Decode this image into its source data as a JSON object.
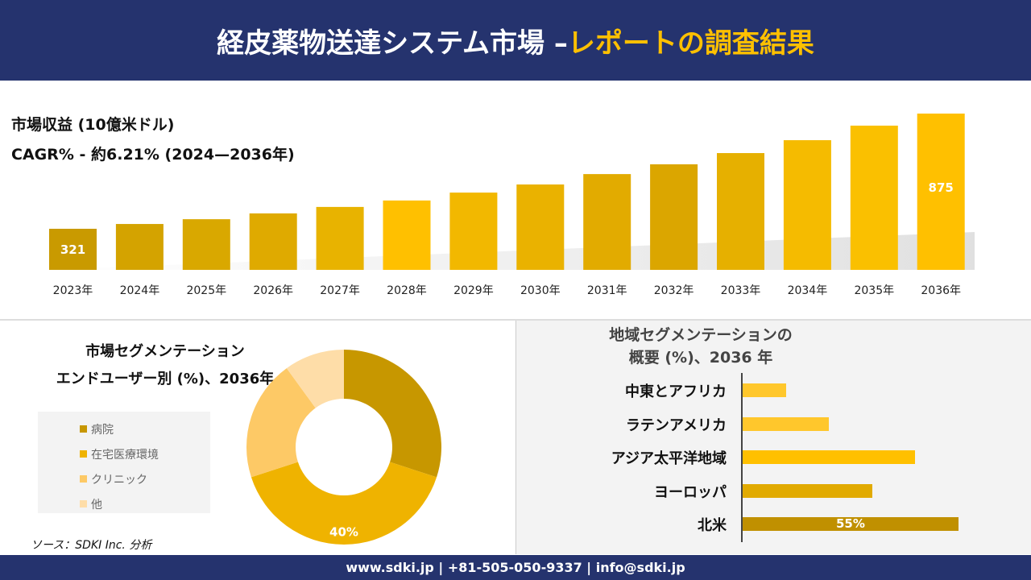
{
  "header": {
    "title_main": "経皮薬物送達システム市場 –",
    "title_accent": "レポートの調査結果"
  },
  "revenue": {
    "title": "市場収益 (10億米ドル)",
    "cagr": "CAGR% - 約6.21% (2024—2036年)"
  },
  "chart_data": [
    {
      "type": "bar",
      "title": "市場収益 (10億米ドル)",
      "categories": [
        "2023年",
        "2024年",
        "2025年",
        "2026年",
        "2027年",
        "2028年",
        "2029年",
        "2030年",
        "2031年",
        "2032年",
        "2033年",
        "2034年",
        "2035年",
        "2036年"
      ],
      "values": [
        321,
        344,
        367,
        395,
        426,
        457,
        495,
        534,
        584,
        631,
        685,
        747,
        817,
        875
      ],
      "data_labels": {
        "2023年": "321",
        "2036年": "875"
      },
      "colors": [
        "#c99a00",
        "#d4a300",
        "#d9a800",
        "#dfaa00",
        "#e8b300",
        "#ffc000",
        "#f2b800",
        "#eab200",
        "#e2ab00",
        "#dba600",
        "#e6b000",
        "#f5bb00",
        "#fac000",
        "#ffc000"
      ]
    },
    {
      "type": "pie",
      "title": "市場セグメンテーション エンドユーザー別 (%)、2036年",
      "labels": [
        "病院",
        "在宅医療環境",
        "クリニック",
        "他"
      ],
      "values": [
        30,
        40,
        20,
        10
      ],
      "data_labels": {
        "在宅医療環境": "40%"
      },
      "colors": [
        "#c79700",
        "#efb300",
        "#fdc966",
        "#fedda8"
      ]
    },
    {
      "type": "bar",
      "orientation": "horizontal",
      "title": "地域セグメンテーションの概要 (%)、2036 年",
      "categories": [
        "中東とアフリカ",
        "ラテンアメリカ",
        "アジア太平洋地域",
        "ヨーロッパ",
        "北米"
      ],
      "values": [
        11,
        22,
        44,
        33,
        55
      ],
      "data_labels": {
        "北米": "55%"
      },
      "colors": [
        "#ffc72c",
        "#ffc72c",
        "#ffc000",
        "#e1aa00",
        "#c09000"
      ]
    }
  ],
  "segment": {
    "title1": "市場セグメンテーション",
    "title2": "エンドユーザー別 (%)、2036年"
  },
  "region": {
    "title1": "地域セグメンテーションの",
    "title2": "概要 (%)、2036 年"
  },
  "source": "ソース：SDKI Inc. 分析",
  "footer": "www.sdki.jp | +81-505-050-9337 | info@sdki.jp"
}
